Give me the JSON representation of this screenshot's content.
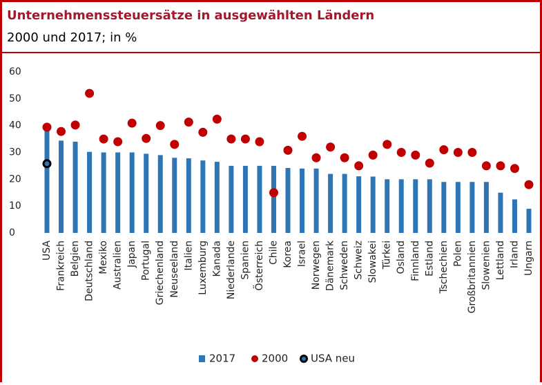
{
  "chart_data": {
    "type": "bar",
    "title": "Unternehmenssteuersätze in ausgewählten Ländern",
    "subtitle": "2000 und 2017; in %",
    "categories": [
      "USA",
      "Frankreich",
      "Belgien",
      "Deutschland",
      "Mexiko",
      "Australien",
      "Japan",
      "Portugal",
      "Griechenland",
      "Neuseeland",
      "Italien",
      "Luxemburg",
      "Kanada",
      "Niederlande",
      "Spanien",
      "Österreich",
      "Chile",
      "Korea",
      "Israel",
      "Norwegen",
      "Dänemark",
      "Schweden",
      "Schweiz",
      "Slowakei",
      "Türkei",
      "Osland",
      "Finnland",
      "Estland",
      "Tschechien",
      "Polen",
      "Großbritannien",
      "Slowenien",
      "Lettland",
      "Irland",
      "Ungarn"
    ],
    "series": [
      {
        "name": "2017",
        "type": "bar",
        "color": "#2e75b6",
        "values": [
          38.9,
          34.4,
          34,
          30.2,
          30,
          30,
          30,
          29.5,
          29,
          28,
          27.8,
          27,
          26.5,
          25,
          25,
          25,
          25,
          24.2,
          24,
          24,
          22,
          22,
          21.1,
          21,
          20,
          20,
          20,
          20,
          19,
          19,
          19,
          19,
          15,
          12.5,
          9
        ]
      },
      {
        "name": "2000",
        "type": "scatter",
        "color": "#c00000",
        "values": [
          39.4,
          37.8,
          40.2,
          52,
          35,
          34,
          40.9,
          35.2,
          40,
          33,
          41.3,
          37.5,
          42.4,
          35,
          35,
          34,
          15,
          30.8,
          36,
          28,
          32,
          28,
          25,
          29,
          33,
          30,
          29,
          26,
          31,
          30,
          30,
          25,
          25,
          24,
          18
        ]
      },
      {
        "name": "USA neu",
        "type": "scatter",
        "color": "#2e75b6",
        "values": [
          25.8,
          null,
          null,
          null,
          null,
          null,
          null,
          null,
          null,
          null,
          null,
          null,
          null,
          null,
          null,
          null,
          null,
          null,
          null,
          null,
          null,
          null,
          null,
          null,
          null,
          null,
          null,
          null,
          null,
          null,
          null,
          null,
          null,
          null,
          null
        ]
      }
    ],
    "ylim": [
      0,
      60
    ],
    "yticks": [
      0,
      10,
      20,
      30,
      40,
      50,
      60
    ],
    "grid": false,
    "legend": "bottom"
  }
}
